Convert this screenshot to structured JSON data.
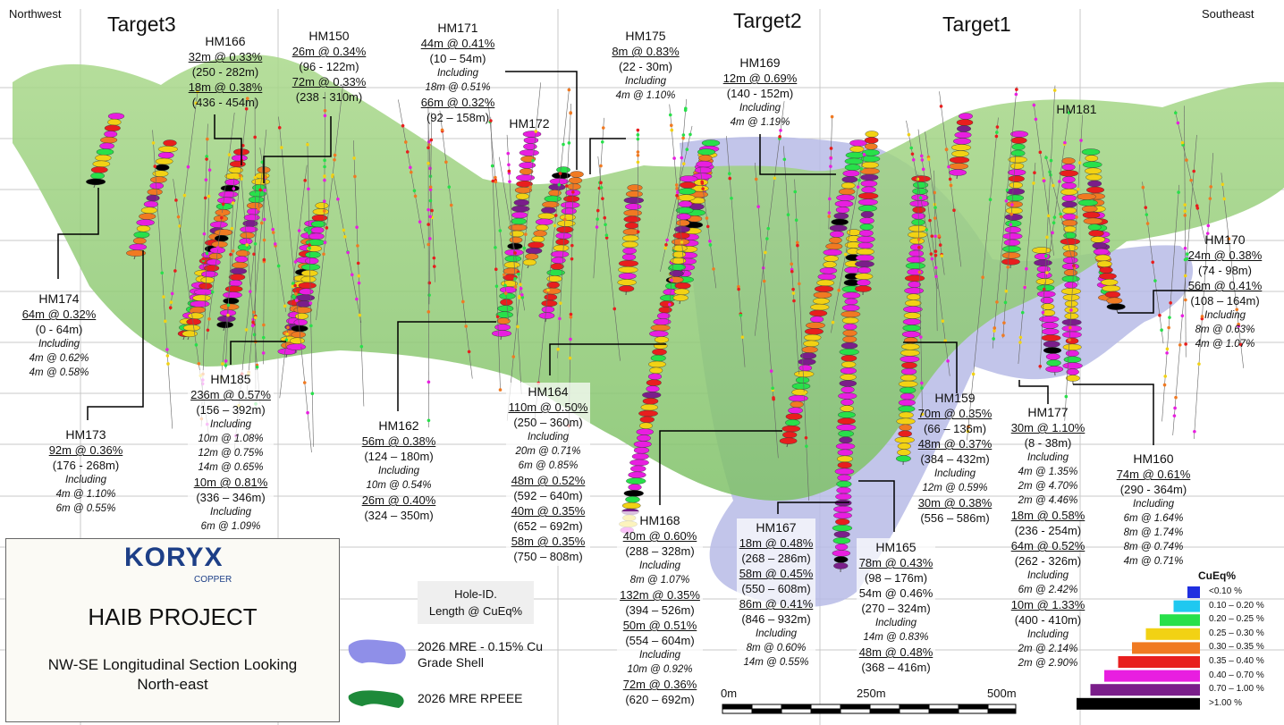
{
  "header": {
    "northwest": "Northwest",
    "southeast": "Southeast",
    "targets": [
      "Target3",
      "Target2",
      "Target1"
    ]
  },
  "holes": [
    {
      "id": "HM166",
      "lines": [
        {
          "t": "32m @ 0.33%",
          "s": "u"
        },
        {
          "t": "(250 - 282m)",
          "s": "n"
        },
        {
          "t": "18m @ 0.38%",
          "s": "u"
        },
        {
          "t": "(436 - 454m)",
          "s": "n"
        }
      ]
    },
    {
      "id": "HM150",
      "lines": [
        {
          "t": "26m @ 0.34%",
          "s": "u"
        },
        {
          "t": "(96 - 122m)",
          "s": "n"
        },
        {
          "t": "72m @ 0.33%",
          "s": "u"
        },
        {
          "t": "(238 - 310m)",
          "s": "n"
        }
      ]
    },
    {
      "id": "HM171",
      "lines": [
        {
          "t": "44m @ 0.41%",
          "s": "u"
        },
        {
          "t": "(10 – 54m)",
          "s": "n"
        },
        {
          "t": "Including",
          "s": "i"
        },
        {
          "t": "18m @ 0.51%",
          "s": "i"
        },
        {
          "t": "66m @ 0.32%",
          "s": "u"
        },
        {
          "t": "(92 – 158m)",
          "s": "n"
        }
      ]
    },
    {
      "id": "HM172",
      "lines": []
    },
    {
      "id": "HM175",
      "lines": [
        {
          "t": "8m @ 0.83%",
          "s": "u"
        },
        {
          "t": "(22 - 30m)",
          "s": "n"
        },
        {
          "t": "Including",
          "s": "i"
        },
        {
          "t": "4m @ 1.10%",
          "s": "i"
        }
      ]
    },
    {
      "id": "HM169",
      "lines": [
        {
          "t": "12m @ 0.69%",
          "s": "u"
        },
        {
          "t": "(140 - 152m)",
          "s": "n"
        },
        {
          "t": "Including",
          "s": "i"
        },
        {
          "t": "4m @ 1.19%",
          "s": "i"
        }
      ]
    },
    {
      "id": "HM181",
      "lines": []
    },
    {
      "id": "HM170",
      "lines": [
        {
          "t": "24m @ 0.38%",
          "s": "u"
        },
        {
          "t": "(74 - 98m)",
          "s": "n"
        },
        {
          "t": "56m @ 0.41%",
          "s": "u"
        },
        {
          "t": "(108 – 164m)",
          "s": "n"
        },
        {
          "t": "Including",
          "s": "i"
        },
        {
          "t": "8m @ 0.63%",
          "s": "i"
        },
        {
          "t": "4m @ 1.07%",
          "s": "i"
        }
      ]
    },
    {
      "id": "HM174",
      "lines": [
        {
          "t": "64m @ 0.32%",
          "s": "u"
        },
        {
          "t": "(0 - 64m)",
          "s": "n"
        },
        {
          "t": "Including",
          "s": "i"
        },
        {
          "t": "4m @ 0.62%",
          "s": "i"
        },
        {
          "t": "4m @ 0.58%",
          "s": "i"
        }
      ]
    },
    {
      "id": "HM185",
      "lines": [
        {
          "t": "236m @ 0.57%",
          "s": "u"
        },
        {
          "t": "(156 – 392m)",
          "s": "n"
        },
        {
          "t": "Including",
          "s": "i"
        },
        {
          "t": "10m @ 1.08%",
          "s": "i"
        },
        {
          "t": "12m @ 0.75%",
          "s": "i"
        },
        {
          "t": "14m @ 0.65%",
          "s": "i"
        },
        {
          "t": "10m @ 0.81%",
          "s": "u"
        },
        {
          "t": "(336 – 346m)",
          "s": "n"
        },
        {
          "t": "Including",
          "s": "i"
        },
        {
          "t": "6m @ 1.09%",
          "s": "i"
        }
      ]
    },
    {
      "id": "HM173",
      "lines": [
        {
          "t": "92m @ 0.36%",
          "s": "u"
        },
        {
          "t": "(176 - 268m)",
          "s": "n"
        },
        {
          "t": "Including",
          "s": "i"
        },
        {
          "t": "4m @ 1.10%",
          "s": "i"
        },
        {
          "t": "6m @ 0.55%",
          "s": "i"
        }
      ]
    },
    {
      "id": "HM162",
      "lines": [
        {
          "t": "56m @ 0.38%",
          "s": "u"
        },
        {
          "t": "(124 – 180m)",
          "s": "n"
        },
        {
          "t": "Including",
          "s": "i"
        },
        {
          "t": "10m @ 0.54%",
          "s": "i"
        },
        {
          "t": "26m @ 0.40%",
          "s": "u"
        },
        {
          "t": "(324 – 350m)",
          "s": "n"
        }
      ]
    },
    {
      "id": "HM164",
      "lines": [
        {
          "t": "110m @ 0.50%",
          "s": "u"
        },
        {
          "t": "(250 – 360m)",
          "s": "n"
        },
        {
          "t": "Including",
          "s": "i"
        },
        {
          "t": "20m @ 0.71%",
          "s": "i"
        },
        {
          "t": "6m @ 0.85%",
          "s": "i"
        },
        {
          "t": "48m @ 0.52%",
          "s": "u"
        },
        {
          "t": "(592 – 640m)",
          "s": "n"
        },
        {
          "t": "40m @ 0.35%",
          "s": "u"
        },
        {
          "t": "(652 – 692m)",
          "s": "n"
        },
        {
          "t": "58m @ 0.35%",
          "s": "u"
        },
        {
          "t": "(750 – 808m)",
          "s": "n"
        }
      ]
    },
    {
      "id": "HM168",
      "lines": [
        {
          "t": "40m @ 0.60%",
          "s": "u"
        },
        {
          "t": "(288 – 328m)",
          "s": "n"
        },
        {
          "t": "Including",
          "s": "i"
        },
        {
          "t": "8m @ 1.07%",
          "s": "i"
        },
        {
          "t": "132m @ 0.35%",
          "s": "u"
        },
        {
          "t": "(394 – 526m)",
          "s": "n"
        },
        {
          "t": "50m @ 0.51%",
          "s": "u"
        },
        {
          "t": "(554 – 604m)",
          "s": "n"
        },
        {
          "t": "Including",
          "s": "i"
        },
        {
          "t": "10m @ 0.92%",
          "s": "i"
        },
        {
          "t": "72m @ 0.36%",
          "s": "u"
        },
        {
          "t": "(620 – 692m)",
          "s": "n"
        }
      ]
    },
    {
      "id": "HM167",
      "lines": [
        {
          "t": "18m @ 0.48%",
          "s": "u"
        },
        {
          "t": "(268 – 286m)",
          "s": "n"
        },
        {
          "t": "58m @ 0.45%",
          "s": "u"
        },
        {
          "t": "(550 – 608m)",
          "s": "n"
        },
        {
          "t": "86m @ 0.41%",
          "s": "u"
        },
        {
          "t": "(846 – 932m)",
          "s": "n"
        },
        {
          "t": "Including",
          "s": "i"
        },
        {
          "t": "8m @ 0.60%",
          "s": "i"
        },
        {
          "t": "14m @ 0.55%",
          "s": "i"
        }
      ]
    },
    {
      "id": "HM165",
      "lines": [
        {
          "t": "78m @ 0.43%",
          "s": "u"
        },
        {
          "t": "(98 – 176m)",
          "s": "n"
        },
        {
          "t": "54m @ 0.46%",
          "s": "n"
        },
        {
          "t": "(270 – 324m)",
          "s": "n"
        },
        {
          "t": "Including",
          "s": "i"
        },
        {
          "t": "14m @ 0.83%",
          "s": "i"
        },
        {
          "t": "48m @ 0.48%",
          "s": "u"
        },
        {
          "t": "(368 – 416m)",
          "s": "n"
        }
      ]
    },
    {
      "id": "HM159",
      "lines": [
        {
          "t": "70m @ 0.35%",
          "s": "u"
        },
        {
          "t": "(66 – 136m)",
          "s": "n"
        },
        {
          "t": "48m @ 0.37%",
          "s": "u"
        },
        {
          "t": "(384 – 432m)",
          "s": "n"
        },
        {
          "t": "Including",
          "s": "i"
        },
        {
          "t": "12m @ 0.59%",
          "s": "i"
        },
        {
          "t": "30m @ 0.38%",
          "s": "u"
        },
        {
          "t": "(556 – 586m)",
          "s": "n"
        }
      ]
    },
    {
      "id": "HM177",
      "lines": [
        {
          "t": "30m @ 1.10%",
          "s": "u"
        },
        {
          "t": "(8 - 38m)",
          "s": "n"
        },
        {
          "t": "Including",
          "s": "i"
        },
        {
          "t": "4m @ 1.35%",
          "s": "i"
        },
        {
          "t": "2m @ 4.70%",
          "s": "i"
        },
        {
          "t": "2m @ 4.46%",
          "s": "i"
        },
        {
          "t": "18m @ 0.58%",
          "s": "u"
        },
        {
          "t": "(236 - 254m)",
          "s": "n"
        },
        {
          "t": "64m @ 0.52%",
          "s": "u"
        },
        {
          "t": "(262 - 326m)",
          "s": "n"
        },
        {
          "t": "Including",
          "s": "i"
        },
        {
          "t": "6m @ 2.42%",
          "s": "i"
        },
        {
          "t": "10m @ 1.33%",
          "s": "u"
        },
        {
          "t": "(400 - 410m)",
          "s": "n"
        },
        {
          "t": "Including",
          "s": "i"
        },
        {
          "t": "2m @ 2.14%",
          "s": "i"
        },
        {
          "t": "2m @ 2.90%",
          "s": "i"
        }
      ]
    },
    {
      "id": "HM160",
      "lines": [
        {
          "t": "74m @ 0.61%",
          "s": "u"
        },
        {
          "t": "(290 - 364m)",
          "s": "n"
        },
        {
          "t": "Including",
          "s": "i"
        },
        {
          "t": "6m @ 1.64%",
          "s": "i"
        },
        {
          "t": "8m @ 1.74%",
          "s": "i"
        },
        {
          "t": "8m @ 0.74%",
          "s": "i"
        },
        {
          "t": "4m @ 0.71%",
          "s": "i"
        }
      ]
    }
  ],
  "title_box": {
    "logo_main": "KORYX",
    "logo_sub": "COPPER",
    "project": "HAIB PROJECT",
    "description": "NW-SE Longitudinal Section Looking\nNorth-east"
  },
  "legend": {
    "key_line1": "Hole-ID.",
    "key_line2": "Length @ CuEq%",
    "shell": "2026 MRE - 0.15% Cu\nGrade Shell",
    "shell_color": "#8f8fe8",
    "rpeee": "2026 MRE RPEEE",
    "rpeee_color": "#1e8a3a"
  },
  "cueq_legend": {
    "title": "CuEq%",
    "classes": [
      {
        "label": "<0.10 %",
        "color": "#1f2fe0"
      },
      {
        "label": "0.10 – 0.20 %",
        "color": "#1fc8f0"
      },
      {
        "label": "0.20 – 0.25 %",
        "color": "#28e04a"
      },
      {
        "label": "0.25 – 0.30 %",
        "color": "#f2d214"
      },
      {
        "label": "0.30 – 0.35 %",
        "color": "#f07a22"
      },
      {
        "label": "0.35 – 0.40 %",
        "color": "#e81e1e"
      },
      {
        "label": "0.40 – 0.70 %",
        "color": "#e81ee0"
      },
      {
        "label": "0.70 – 1.00 %",
        "color": "#7a1e8a"
      },
      {
        "label": ">1.00 %",
        "color": "#000000"
      }
    ]
  },
  "scale_bar": {
    "labels": [
      "0m",
      "250m",
      "500m"
    ]
  }
}
